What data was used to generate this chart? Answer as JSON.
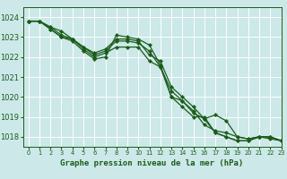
{
  "title": "Graphe pression niveau de la mer (hPa)",
  "bg_color": "#cce8e8",
  "grid_color": "#ffffff",
  "line_color": "#1a5c1a",
  "xlim": [
    -0.5,
    23
  ],
  "ylim": [
    1017.5,
    1024.5
  ],
  "yticks": [
    1018,
    1019,
    1020,
    1021,
    1022,
    1023,
    1024
  ],
  "xticks": [
    0,
    1,
    2,
    3,
    4,
    5,
    6,
    7,
    8,
    9,
    10,
    11,
    12,
    13,
    14,
    15,
    16,
    17,
    18,
    19,
    20,
    21,
    22,
    23
  ],
  "series": [
    [
      1023.8,
      1023.8,
      1023.5,
      1023.3,
      1022.9,
      1022.5,
      1022.2,
      1022.4,
      1022.9,
      1022.9,
      1022.8,
      1022.1,
      1021.8,
      1020.5,
      1020.0,
      1019.5,
      1018.9,
      1019.1,
      1018.8,
      1018.0,
      1017.9,
      1018.0,
      1018.0,
      1017.8
    ],
    [
      1023.8,
      1023.8,
      1023.4,
      1023.0,
      1022.9,
      1022.4,
      1022.0,
      1022.2,
      1022.5,
      1022.5,
      1022.5,
      1021.8,
      1021.5,
      1020.3,
      1019.8,
      1019.3,
      1018.6,
      1018.3,
      1018.2,
      1018.0,
      1017.9,
      1018.0,
      1018.0,
      1017.8
    ],
    [
      1023.8,
      1023.8,
      1023.4,
      1023.0,
      1022.8,
      1022.3,
      1021.9,
      1022.0,
      1023.1,
      1023.0,
      1022.9,
      1022.6,
      1021.6,
      1020.0,
      1019.5,
      1019.0,
      1019.0,
      1018.2,
      1018.0,
      1017.8,
      1017.8,
      1018.0,
      1018.0,
      1017.8
    ],
    [
      1023.8,
      1023.8,
      1023.5,
      1023.1,
      1022.9,
      1022.5,
      1022.1,
      1022.3,
      1022.8,
      1022.8,
      1022.7,
      1022.3,
      1021.5,
      1020.0,
      1019.8,
      1019.2,
      1018.9,
      1018.2,
      1018.0,
      1017.8,
      1017.8,
      1018.0,
      1017.9,
      1017.8
    ]
  ],
  "ytick_fontsize": 6,
  "xtick_fontsize": 4.8,
  "xlabel_fontsize": 6.5,
  "linewidth": 0.9,
  "markersize": 2.2
}
